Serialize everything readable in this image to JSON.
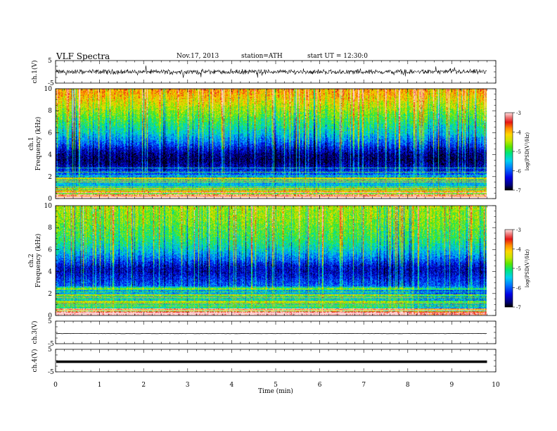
{
  "header": {
    "title": "VLF Spectra",
    "date": "Nov.17, 2013",
    "station": "station=ATH",
    "start": "start UT =   12:30:0"
  },
  "colorbar": {
    "label": "log(PSD(V²/Hz)",
    "range": [
      -7,
      -3
    ],
    "ticks": [
      "-3",
      "-4",
      "-5",
      "-6",
      "-7"
    ]
  },
  "chart_data": [
    {
      "type": "line",
      "ylabel": "ch.1(V)",
      "ylim": [
        -5,
        5
      ],
      "yticks": [
        "5",
        "-5"
      ],
      "x_range_min": [
        0,
        9.8
      ],
      "description_level": "noisy signal around 0 V, amplitude about ±1 V with spikes to ±3 V"
    },
    {
      "type": "heatmap",
      "ylabel_top": "ch.1",
      "ylabel": "Frequency (kHz)",
      "ylim": [
        0,
        10
      ],
      "yticks": [
        "0",
        "2",
        "4",
        "6",
        "8",
        "10"
      ],
      "x_range_min": [
        0,
        9.8
      ],
      "profile_kHz": [
        0,
        0.5,
        1,
        1.5,
        2,
        2.5,
        3,
        3.5,
        4,
        4.5,
        5,
        5.5,
        6,
        6.5,
        7,
        7.5,
        8,
        8.5,
        9,
        9.5,
        10
      ],
      "profile_logpsd": [
        -3.2,
        -5.0,
        -5.5,
        -5.6,
        -5.8,
        -6.2,
        -6.6,
        -6.8,
        -6.7,
        -6.4,
        -6.0,
        -5.7,
        -5.4,
        -5.2,
        -5.0,
        -4.8,
        -4.6,
        -4.4,
        -4.2,
        -4.0,
        -3.9
      ]
    },
    {
      "type": "heatmap",
      "ylabel_top": "ch.2",
      "ylabel": "Frequency (kHz)",
      "ylim": [
        0,
        10
      ],
      "yticks": [
        "0",
        "2",
        "4",
        "6",
        "8",
        "10"
      ],
      "x_range_min": [
        0,
        9.8
      ],
      "profile_kHz": [
        0,
        0.5,
        1,
        1.5,
        2,
        2.5,
        3,
        3.5,
        4,
        4.5,
        5,
        5.5,
        6,
        6.5,
        7,
        7.5,
        8,
        8.5,
        9,
        9.5,
        10
      ],
      "profile_logpsd": [
        -3.5,
        -5.0,
        -5.4,
        -5.5,
        -5.6,
        -5.9,
        -6.1,
        -6.3,
        -6.5,
        -6.4,
        -6.0,
        -5.7,
        -5.4,
        -5.2,
        -5.0,
        -4.9,
        -4.8,
        -4.7,
        -4.6,
        -4.6,
        -4.5
      ]
    },
    {
      "type": "line",
      "ylabel": "ch.3(V)",
      "ylim": [
        -5,
        5
      ],
      "yticks": [
        "5",
        "-5"
      ],
      "x_range_min": [
        0,
        9.8
      ],
      "value_level": -0.5
    },
    {
      "type": "line",
      "ylabel": "ch.4(V)",
      "ylim": [
        -5,
        5
      ],
      "yticks": [
        "5",
        "-5"
      ],
      "x_range_min": [
        0,
        9.8
      ],
      "value_level": -0.5
    }
  ],
  "xaxis": {
    "label": "Time (min)",
    "range": [
      0,
      10
    ],
    "ticks": [
      "0",
      "1",
      "2",
      "3",
      "4",
      "5",
      "6",
      "7",
      "8",
      "9",
      "10"
    ]
  }
}
